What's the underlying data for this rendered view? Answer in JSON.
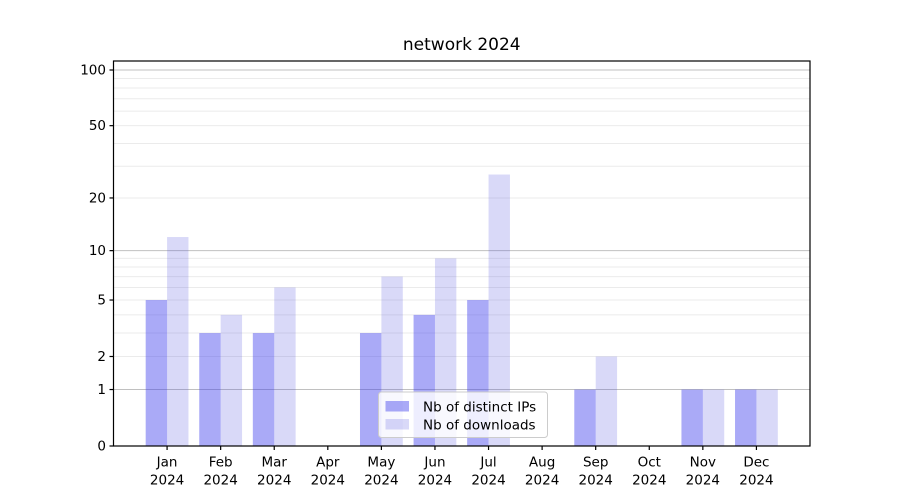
{
  "chart_data": {
    "type": "bar",
    "title": "network 2024",
    "categories": [
      "Jan 2024",
      "Feb 2024",
      "Mar 2024",
      "Apr 2024",
      "May 2024",
      "Jun 2024",
      "Jul 2024",
      "Aug 2024",
      "Sep 2024",
      "Oct 2024",
      "Nov 2024",
      "Dec 2024"
    ],
    "series": [
      {
        "name": "Nb of distinct IPs",
        "color": "rgba(66,66,237,0.45)",
        "values": [
          5,
          3,
          3,
          0,
          3,
          4,
          5,
          0,
          1,
          0,
          1,
          1
        ]
      },
      {
        "name": "Nb of downloads",
        "color": "rgba(80,80,225,0.22)",
        "values": [
          12,
          4,
          6,
          0,
          7,
          9,
          27,
          0,
          2,
          0,
          1,
          1
        ]
      }
    ],
    "xlabel": "",
    "ylabel": "",
    "y_scale": "log1p",
    "y_ticks": [
      0,
      1,
      2,
      5,
      10,
      20,
      50,
      100
    ],
    "y_major_gridlines": [
      1,
      10,
      100
    ],
    "y_minor_gridlines": [
      2,
      3,
      4,
      5,
      6,
      7,
      8,
      9,
      20,
      30,
      40,
      50,
      60,
      70,
      80,
      90
    ],
    "ylim": [
      0,
      112
    ],
    "grid": true,
    "legend_position": "lower center",
    "colors": {
      "axis": "#000000",
      "major_grid": "#c0c0c0",
      "minor_grid": "#ebebeb",
      "legend_border": "#cccccc",
      "legend_background": "rgba(255,255,255,0.8)"
    }
  }
}
